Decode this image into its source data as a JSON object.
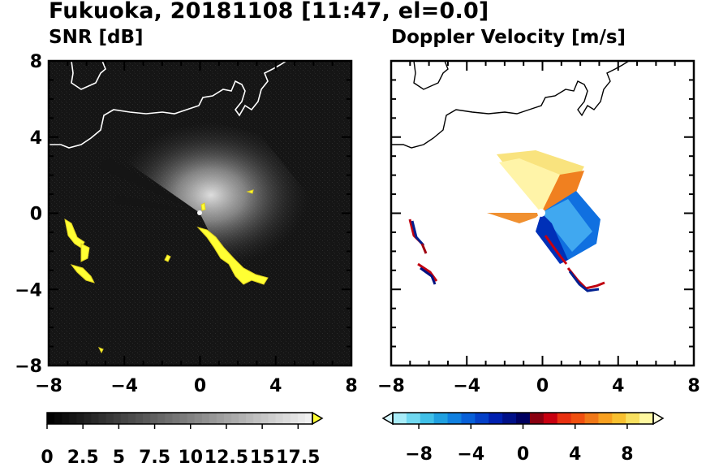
{
  "header": {
    "title": "Fukuoka, 20181108 [11:47, el=0.0]"
  },
  "chart_data": [
    {
      "type": "heatmap",
      "title": "SNR [dB]",
      "xlim": [
        -8,
        8
      ],
      "ylim": [
        -8,
        8
      ],
      "x_ticks": [
        -8,
        -4,
        0,
        4,
        8
      ],
      "y_ticks": [
        -8,
        -4,
        0,
        4,
        8
      ],
      "x_tick_labels": [
        "−8",
        "−4",
        "0",
        "4",
        "8"
      ],
      "y_tick_labels": [
        "−8",
        "−4",
        "0",
        "4",
        "8"
      ],
      "background": "#111111",
      "colorscale": {
        "from": "#000000",
        "to": "#f0f0f0",
        "over": "#ffff33"
      },
      "colorbar": {
        "range": [
          0,
          18.5
        ],
        "ticks": [
          0,
          2.5,
          5,
          7.5,
          10,
          12.5,
          15,
          17.5
        ],
        "labels": [
          "0",
          "2.5",
          "5",
          "7.5",
          "10",
          "12.5",
          "15",
          "17.5"
        ]
      },
      "grid": false
    },
    {
      "type": "heatmap",
      "title": "Doppler Velocity [m/s]",
      "xlim": [
        -8,
        8
      ],
      "ylim": [
        -8,
        8
      ],
      "x_ticks": [
        -8,
        -4,
        0,
        4,
        8
      ],
      "y_ticks": [
        -8,
        -4,
        0,
        4,
        8
      ],
      "x_tick_labels": [
        "−8",
        "−4",
        "0",
        "4",
        "8"
      ],
      "y_tick_labels": [
        "−8",
        "−4",
        "0",
        "4",
        "8"
      ],
      "background": "#ffffff",
      "colorbar": {
        "range": [
          -10,
          10
        ],
        "ticks": [
          -8,
          -4,
          0,
          4,
          8
        ],
        "labels": [
          "−8",
          "−4",
          "0",
          "4",
          "8"
        ],
        "colors": [
          "#d8f8ff",
          "#a8ecf8",
          "#70d8f0",
          "#40c0e8",
          "#20a0e0",
          "#1080e0",
          "#0860d8",
          "#0440c8",
          "#0020b0",
          "#001088",
          "#000060",
          "#8a0010",
          "#c80010",
          "#e83010",
          "#f05010",
          "#f07818",
          "#f8a020",
          "#f8c030",
          "#f8e060",
          "#fff8a0",
          "#ffffe0"
        ]
      },
      "grid": false
    }
  ]
}
